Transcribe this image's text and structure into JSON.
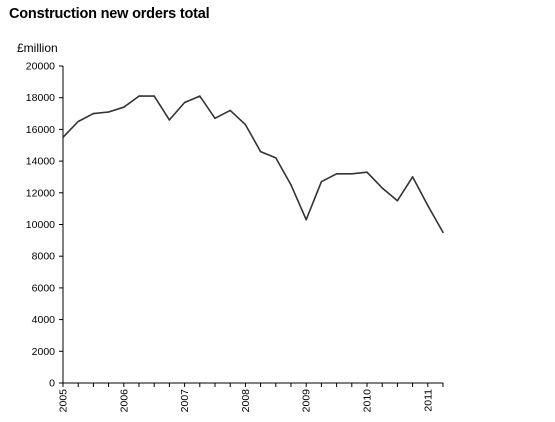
{
  "chart_data": {
    "type": "line",
    "title": "Construction new orders total",
    "ylabel": "£million",
    "xlabel": "",
    "ylim": [
      0,
      20000
    ],
    "yticks": [
      0,
      2000,
      4000,
      6000,
      8000,
      10000,
      12000,
      14000,
      16000,
      18000,
      20000
    ],
    "x_tick_labels": [
      "2005",
      "2006",
      "2007",
      "2008",
      "2009",
      "2010",
      "2011"
    ],
    "x_unit": "quarter",
    "x_start_year": 2005,
    "grid": false,
    "legend": "none",
    "series": [
      {
        "color": "#333333",
        "x": [
          "2005 Q1",
          "2005 Q2",
          "2005 Q3",
          "2005 Q4",
          "2006 Q1",
          "2006 Q2",
          "2006 Q3",
          "2006 Q4",
          "2007 Q1",
          "2007 Q2",
          "2007 Q3",
          "2007 Q4",
          "2008 Q1",
          "2008 Q2",
          "2008 Q3",
          "2008 Q4",
          "2009 Q1",
          "2009 Q2",
          "2009 Q3",
          "2009 Q4",
          "2010 Q1",
          "2010 Q2",
          "2010 Q3",
          "2010 Q4",
          "2011 Q1",
          "2011 Q2"
        ],
        "values": [
          15500,
          16500,
          17000,
          17100,
          17400,
          18100,
          18100,
          16600,
          17700,
          18100,
          16700,
          17200,
          16300,
          14600,
          14200,
          12500,
          10300,
          12700,
          13200,
          13200,
          13300,
          12300,
          11500,
          13000,
          11200,
          9500
        ]
      }
    ]
  }
}
